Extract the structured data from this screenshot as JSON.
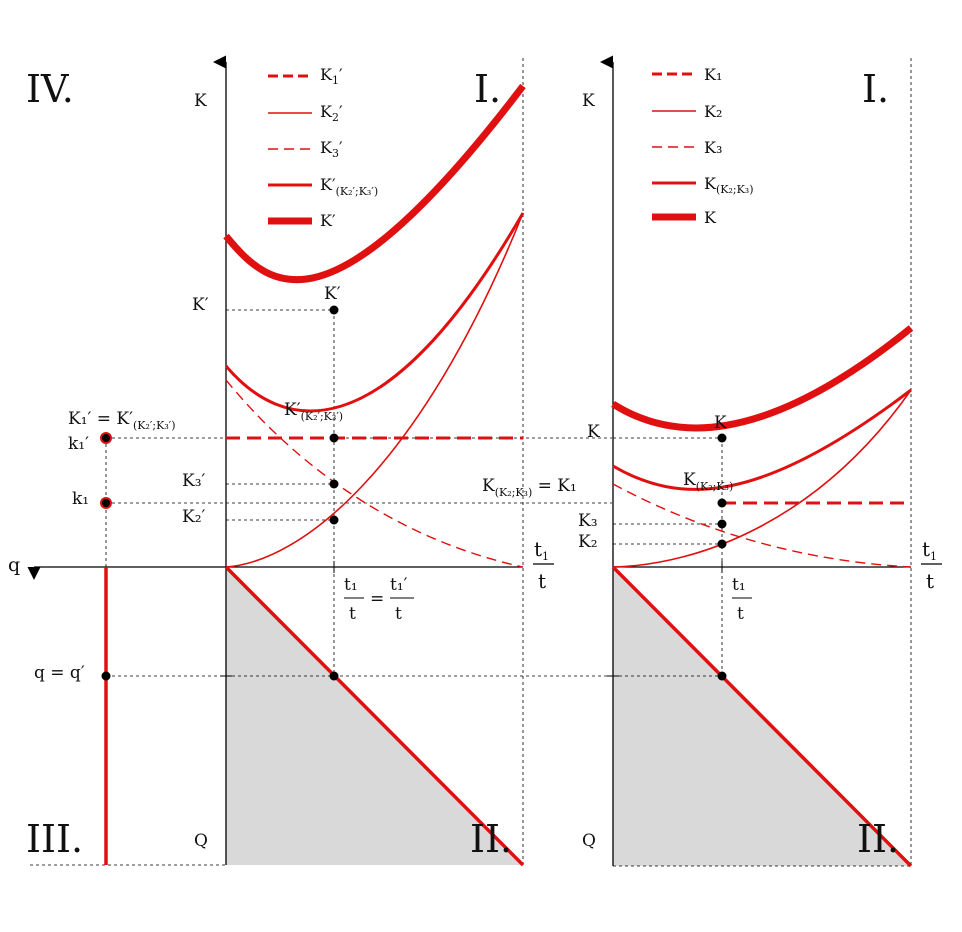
{
  "colors": {
    "curve": "#e01010",
    "axis": "#000000",
    "shade": "#d9d9d9",
    "guide": "#000000"
  },
  "quadrants": {
    "iv": "IV.",
    "i": "I.",
    "iii": "III.",
    "ii": "II."
  },
  "left": {
    "axis_k": "K",
    "axis_q": "q",
    "axis_Q": "Q",
    "axis_x_num": "t",
    "axis_x_num_sub": "1",
    "axis_x_den": "t",
    "legend": [
      {
        "main": "K",
        "sub": "1",
        "tail": "′"
      },
      {
        "main": "K",
        "sub": "2",
        "tail": "′"
      },
      {
        "main": "K",
        "sub": "3",
        "tail": "′"
      },
      {
        "main": "K′",
        "sub": "(K₂′;K₃′)",
        "tail": ""
      },
      {
        "main": "K′",
        "sub": "",
        "tail": ""
      }
    ],
    "point_top": "K′",
    "point_mid_main": "K′",
    "point_mid_sub": "(K₂′;K₃′)",
    "tick_kprime": "K′",
    "tick_k3": "K₃′",
    "tick_k2": "K₂′",
    "eq_main1": "K₁′ = K′",
    "eq_sub": "(K₂′;K₃′)",
    "eq_tail": "′",
    "k1prime": "k₁′",
    "k1": "k₁",
    "q_eq": "q = q′",
    "t_eq_lhs_num": "t₁",
    "t_eq_lhs_den": "t",
    "t_eq_sign": "=",
    "t_eq_rhs_num": "t₁′",
    "t_eq_rhs_den": "t"
  },
  "right": {
    "axis_k": "K",
    "axis_Q": "Q",
    "axis_x_num": "t",
    "axis_x_num_sub": "1",
    "axis_x_den": "t",
    "legend": [
      {
        "main": "K₁",
        "sub": ""
      },
      {
        "main": "K₂",
        "sub": ""
      },
      {
        "main": "K₃",
        "sub": ""
      },
      {
        "main": "K",
        "sub": "(K₂;K₃)"
      },
      {
        "main": "K",
        "sub": ""
      }
    ],
    "point_top": "K",
    "point_mid_main": "K",
    "point_mid_sub": "(K₂;K₃)",
    "tick_k": "K",
    "tick_k3": "K₃",
    "tick_k2": "K₂",
    "eq_main": "K",
    "eq_sub": "(K₂;K₃)",
    "eq_tail": " = K₁",
    "t_num": "t₁",
    "t_den": "t"
  }
}
